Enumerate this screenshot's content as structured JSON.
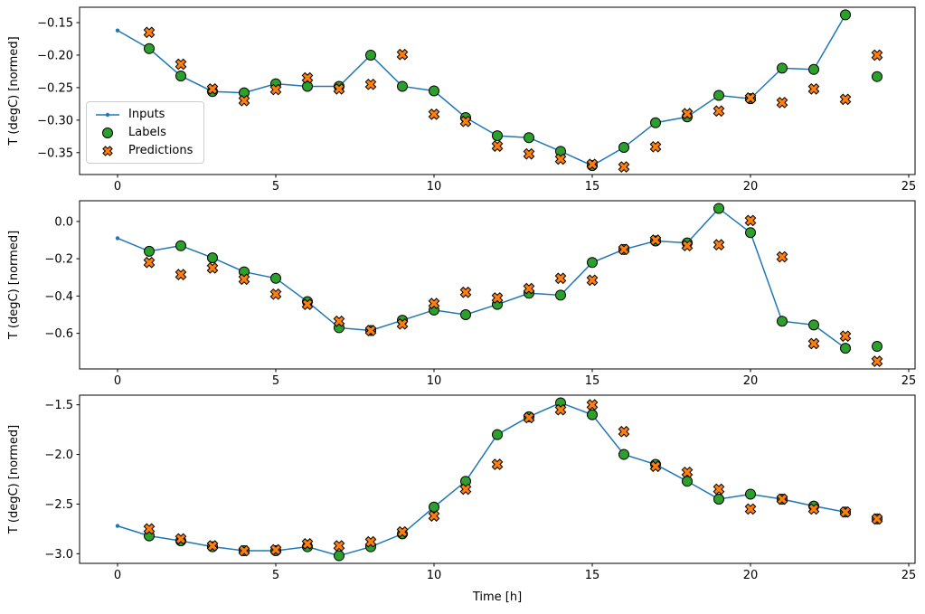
{
  "figure": {
    "background": "#ffffff",
    "ylabel": "T (degC) [normed]",
    "xlabel": "Time [h]",
    "colors": {
      "inputs": "#1f77b4",
      "labels": "#2ca02c",
      "predictions": "#ff7f0e",
      "marker_edge": "#000000",
      "axis": "#000000"
    },
    "legend": {
      "items": [
        {
          "label": "Inputs",
          "marker": "line-dot"
        },
        {
          "label": "Labels",
          "marker": "circle"
        },
        {
          "label": "Predictions",
          "marker": "x"
        }
      ]
    }
  },
  "chart_data": [
    {
      "type": "line",
      "title": "",
      "xlabel": "",
      "ylabel": "T (degC) [normed]",
      "xlim": [
        -1.2,
        25.2
      ],
      "xticks": [
        0,
        5,
        10,
        15,
        20,
        25
      ],
      "xtick_labels": [
        "0",
        "5",
        "10",
        "15",
        "20",
        "25"
      ],
      "yticks": [
        -0.15,
        -0.2,
        -0.25,
        -0.3,
        -0.35
      ],
      "ytick_labels": [
        "−0.15",
        "−0.20",
        "−0.25",
        "−0.30",
        "−0.35"
      ],
      "series": [
        {
          "name": "Inputs",
          "type": "line",
          "color": "#1f77b4",
          "x": [
            0,
            1,
            2,
            3,
            4,
            5,
            6,
            7,
            8,
            9,
            10,
            11,
            12,
            13,
            14,
            15,
            16,
            17,
            18,
            19,
            20,
            21,
            22,
            23
          ],
          "values": [
            -0.162,
            -0.19,
            -0.232,
            -0.256,
            -0.258,
            -0.244,
            -0.248,
            -0.248,
            -0.2,
            -0.248,
            -0.255,
            -0.296,
            -0.324,
            -0.327,
            -0.348,
            -0.37,
            -0.342,
            -0.304,
            -0.295,
            -0.262,
            -0.267,
            -0.22,
            -0.222,
            -0.138
          ]
        },
        {
          "name": "Labels",
          "type": "scatter",
          "marker": "circle",
          "color": "#2ca02c",
          "x": [
            1,
            2,
            3,
            4,
            5,
            6,
            7,
            8,
            9,
            10,
            11,
            12,
            13,
            14,
            15,
            16,
            17,
            18,
            19,
            20,
            21,
            22,
            23,
            24
          ],
          "values": [
            -0.19,
            -0.232,
            -0.256,
            -0.258,
            -0.244,
            -0.248,
            -0.248,
            -0.2,
            -0.248,
            -0.255,
            -0.296,
            -0.324,
            -0.327,
            -0.348,
            -0.37,
            -0.342,
            -0.304,
            -0.295,
            -0.262,
            -0.267,
            -0.22,
            -0.222,
            -0.138,
            -0.233
          ]
        },
        {
          "name": "Predictions",
          "type": "scatter",
          "marker": "x",
          "color": "#ff7f0e",
          "x": [
            1,
            2,
            3,
            4,
            5,
            6,
            7,
            8,
            9,
            10,
            11,
            12,
            13,
            14,
            15,
            16,
            17,
            18,
            19,
            20,
            21,
            22,
            23,
            24
          ],
          "values": [
            -0.165,
            -0.214,
            -0.252,
            -0.27,
            -0.253,
            -0.235,
            -0.252,
            -0.245,
            -0.199,
            -0.291,
            -0.302,
            -0.34,
            -0.352,
            -0.36,
            -0.368,
            -0.372,
            -0.341,
            -0.29,
            -0.286,
            -0.266,
            -0.273,
            -0.252,
            -0.268,
            -0.2
          ]
        }
      ]
    },
    {
      "type": "line",
      "title": "",
      "xlabel": "",
      "ylabel": "T (degC) [normed]",
      "xlim": [
        -1.2,
        25.2
      ],
      "xticks": [
        0,
        5,
        10,
        15,
        20,
        25
      ],
      "xtick_labels": [
        "0",
        "5",
        "10",
        "15",
        "20",
        "25"
      ],
      "yticks": [
        0.0,
        -0.2,
        -0.4,
        -0.6
      ],
      "ytick_labels": [
        "0.0",
        "−0.2",
        "−0.4",
        "−0.6"
      ],
      "series": [
        {
          "name": "Inputs",
          "type": "line",
          "color": "#1f77b4",
          "x": [
            0,
            1,
            2,
            3,
            4,
            5,
            6,
            7,
            8,
            9,
            10,
            11,
            12,
            13,
            14,
            15,
            16,
            17,
            18,
            19,
            20,
            21,
            22,
            23
          ],
          "values": [
            -0.09,
            -0.16,
            -0.13,
            -0.195,
            -0.27,
            -0.305,
            -0.43,
            -0.57,
            -0.585,
            -0.53,
            -0.475,
            -0.5,
            -0.445,
            -0.385,
            -0.395,
            -0.22,
            -0.15,
            -0.105,
            -0.115,
            0.07,
            -0.06,
            -0.535,
            -0.555,
            -0.68
          ]
        },
        {
          "name": "Labels",
          "type": "scatter",
          "marker": "circle",
          "color": "#2ca02c",
          "x": [
            1,
            2,
            3,
            4,
            5,
            6,
            7,
            8,
            9,
            10,
            11,
            12,
            13,
            14,
            15,
            16,
            17,
            18,
            19,
            20,
            21,
            22,
            23,
            24
          ],
          "values": [
            -0.16,
            -0.13,
            -0.195,
            -0.27,
            -0.305,
            -0.43,
            -0.57,
            -0.585,
            -0.53,
            -0.475,
            -0.5,
            -0.445,
            -0.385,
            -0.395,
            -0.22,
            -0.15,
            -0.105,
            -0.115,
            0.07,
            -0.06,
            -0.535,
            -0.555,
            -0.68,
            -0.67
          ]
        },
        {
          "name": "Predictions",
          "type": "scatter",
          "marker": "x",
          "color": "#ff7f0e",
          "x": [
            1,
            2,
            3,
            4,
            5,
            6,
            7,
            8,
            9,
            10,
            11,
            12,
            13,
            14,
            15,
            16,
            17,
            18,
            19,
            20,
            21,
            22,
            23,
            24
          ],
          "values": [
            -0.22,
            -0.285,
            -0.25,
            -0.31,
            -0.39,
            -0.445,
            -0.535,
            -0.585,
            -0.55,
            -0.44,
            -0.38,
            -0.41,
            -0.36,
            -0.305,
            -0.315,
            -0.15,
            -0.1,
            -0.13,
            -0.125,
            0.005,
            -0.19,
            -0.655,
            -0.615,
            -0.75
          ]
        }
      ]
    },
    {
      "type": "line",
      "title": "",
      "xlabel": "Time [h]",
      "ylabel": "T (degC) [normed]",
      "xlim": [
        -1.2,
        25.2
      ],
      "xticks": [
        0,
        5,
        10,
        15,
        20,
        25
      ],
      "xtick_labels": [
        "0",
        "5",
        "10",
        "15",
        "20",
        "25"
      ],
      "yticks": [
        -1.5,
        -2.0,
        -2.5,
        -3.0
      ],
      "ytick_labels": [
        "−1.5",
        "−2.0",
        "−2.5",
        "−3.0"
      ],
      "series": [
        {
          "name": "Inputs",
          "type": "line",
          "color": "#1f77b4",
          "x": [
            0,
            1,
            2,
            3,
            4,
            5,
            6,
            7,
            8,
            9,
            10,
            11,
            12,
            13,
            14,
            15,
            16,
            17,
            18,
            19,
            20,
            21,
            22,
            23
          ],
          "values": [
            -2.72,
            -2.82,
            -2.87,
            -2.93,
            -2.97,
            -2.97,
            -2.93,
            -3.02,
            -2.93,
            -2.8,
            -2.53,
            -2.27,
            -1.8,
            -1.62,
            -1.48,
            -1.6,
            -2.0,
            -2.1,
            -2.27,
            -2.45,
            -2.4,
            -2.45,
            -2.52,
            -2.58
          ]
        },
        {
          "name": "Labels",
          "type": "scatter",
          "marker": "circle",
          "color": "#2ca02c",
          "x": [
            1,
            2,
            3,
            4,
            5,
            6,
            7,
            8,
            9,
            10,
            11,
            12,
            13,
            14,
            15,
            16,
            17,
            18,
            19,
            20,
            21,
            22,
            23,
            24
          ],
          "values": [
            -2.82,
            -2.87,
            -2.93,
            -2.97,
            -2.97,
            -2.93,
            -3.02,
            -2.93,
            -2.8,
            -2.53,
            -2.27,
            -1.8,
            -1.62,
            -1.48,
            -1.6,
            -2.0,
            -2.1,
            -2.27,
            -2.45,
            -2.4,
            -2.45,
            -2.52,
            -2.58,
            -2.65
          ]
        },
        {
          "name": "Predictions",
          "type": "scatter",
          "marker": "x",
          "color": "#ff7f0e",
          "x": [
            1,
            2,
            3,
            4,
            5,
            6,
            7,
            8,
            9,
            10,
            11,
            12,
            13,
            14,
            15,
            16,
            17,
            18,
            19,
            20,
            21,
            22,
            23,
            24
          ],
          "values": [
            -2.75,
            -2.85,
            -2.92,
            -2.97,
            -2.96,
            -2.9,
            -2.92,
            -2.88,
            -2.78,
            -2.62,
            -2.35,
            -2.1,
            -1.63,
            -1.55,
            -1.5,
            -1.77,
            -2.12,
            -2.18,
            -2.35,
            -2.55,
            -2.45,
            -2.55,
            -2.58,
            -2.65
          ]
        }
      ]
    }
  ]
}
